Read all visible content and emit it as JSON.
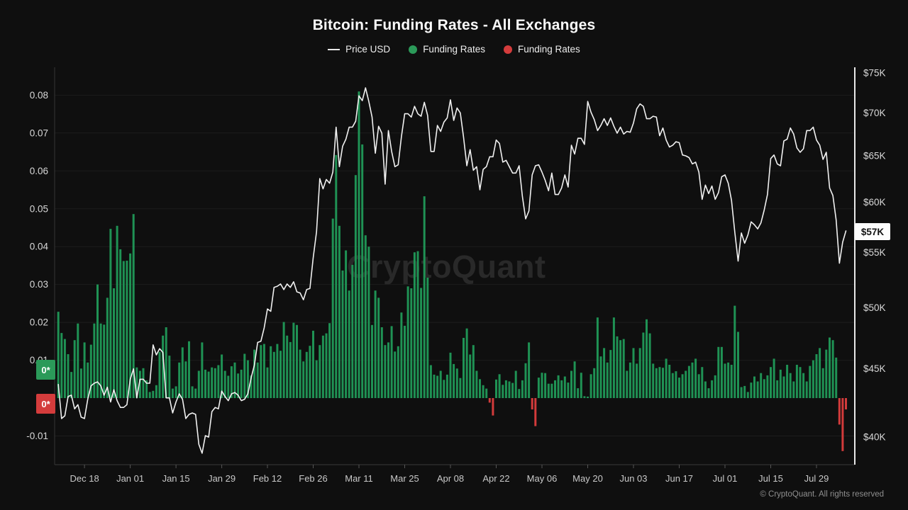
{
  "title": "Bitcoin: Funding Rates - All Exchanges",
  "legend": [
    {
      "label": "Price USD",
      "type": "line",
      "color": "#e8e8e8"
    },
    {
      "label": "Funding Rates",
      "type": "dot",
      "color": "#2b9a59"
    },
    {
      "label": "Funding Rates",
      "type": "dot",
      "color": "#d43c3c"
    }
  ],
  "watermark": "CryptoQuant",
  "copyright": "© CryptoQuant. All rights reserved",
  "left_axis": {
    "ticks": [
      0.08,
      0.07,
      0.06,
      0.05,
      0.04,
      0.03,
      0.02,
      0.01,
      -0.01
    ],
    "tick_labels": [
      "0.08",
      "0.07",
      "0.06",
      "0.05",
      "0.04",
      "0.03",
      "0.02",
      "0.01",
      "-0.01"
    ],
    "badges": [
      {
        "label": "0*",
        "series": "funding-positive",
        "color": "#2b9a59"
      },
      {
        "label": "0*",
        "series": "funding-negative",
        "color": "#d43c3c"
      }
    ]
  },
  "right_axis": {
    "ticks": [
      75000,
      70000,
      65000,
      60000,
      55000,
      50000,
      45000,
      40000
    ],
    "tick_labels": [
      "$75K",
      "$70K",
      "$65K",
      "$60K",
      "$55K",
      "$50K",
      "$45K",
      "$40K"
    ],
    "latest_price_badge": "$57K"
  },
  "chart_data": {
    "type": "mixed",
    "title": "Bitcoin: Funding Rates - All Exchanges",
    "start_date": "2023-12-10",
    "end_date": "2024-08-07",
    "x_ticks": [
      {
        "label": "Dec 18",
        "day": 8
      },
      {
        "label": "Jan 01",
        "day": 22
      },
      {
        "label": "Jan 15",
        "day": 36
      },
      {
        "label": "Jan 29",
        "day": 50
      },
      {
        "label": "Feb 12",
        "day": 64
      },
      {
        "label": "Feb 26",
        "day": 78
      },
      {
        "label": "Mar 11",
        "day": 92
      },
      {
        "label": "Mar 25",
        "day": 106
      },
      {
        "label": "Apr 08",
        "day": 120
      },
      {
        "label": "Apr 22",
        "day": 134
      },
      {
        "label": "May 06",
        "day": 148
      },
      {
        "label": "May 20",
        "day": 162
      },
      {
        "label": "Jun 03",
        "day": 176
      },
      {
        "label": "Jun 17",
        "day": 190
      },
      {
        "label": "Jul 01",
        "day": 204
      },
      {
        "label": "Jul 15",
        "day": 218
      },
      {
        "label": "Jul 29",
        "day": 232
      }
    ],
    "left_axis_range": [
      -0.015,
      0.085
    ],
    "right_axis_range_usd": [
      38000,
      76000
    ],
    "right_axis_scale": "log",
    "grid": "horizontal-only",
    "legend_position": "top-center",
    "series": [
      {
        "name": "Price USD",
        "type": "line",
        "color": "#f0f0f0",
        "unit": "USD thousands, daily",
        "values": [
          43.8,
          41.3,
          41.5,
          42.9,
          43.0,
          42.0,
          42.3,
          41.4,
          41.3,
          42.7,
          43.7,
          43.9,
          44.0,
          43.7,
          43.0,
          43.6,
          42.5,
          43.4,
          42.6,
          42.1,
          42.1,
          42.3,
          44.2,
          45.0,
          42.8,
          44.2,
          44.2,
          43.9,
          43.9,
          46.9,
          46.1,
          46.6,
          46.3,
          42.8,
          42.8,
          41.7,
          42.5,
          43.1,
          42.7,
          41.3,
          41.6,
          41.7,
          41.6,
          39.5,
          38.9,
          40.1,
          40.0,
          41.8,
          42.1,
          42.0,
          43.3,
          42.9,
          42.6,
          43.1,
          43.2,
          43.0,
          42.6,
          42.7,
          43.1,
          44.3,
          45.3,
          47.1,
          47.2,
          48.3,
          49.9,
          49.7,
          51.8,
          51.9,
          52.1,
          51.6,
          52.1,
          51.8,
          52.3,
          51.4,
          51.3,
          50.7,
          51.6,
          51.7,
          54.5,
          57.0,
          62.5,
          61.4,
          62.4,
          62.0,
          63.2,
          68.3,
          63.8,
          66.1,
          66.9,
          68.3,
          68.3,
          69.0,
          72.1,
          71.5,
          73.1,
          71.4,
          69.5,
          65.3,
          68.4,
          67.6,
          61.9,
          67.9,
          65.5,
          63.8,
          64.0,
          67.2,
          69.9,
          69.9,
          69.5,
          70.8,
          69.9,
          69.6,
          71.3,
          69.7,
          65.5,
          65.5,
          68.5,
          67.8,
          68.9,
          69.4,
          71.6,
          69.1,
          70.6,
          70.0,
          67.1,
          63.9,
          65.7,
          63.4,
          63.8,
          61.3,
          63.5,
          63.8,
          64.9,
          64.9,
          66.8,
          66.4,
          64.3,
          64.5,
          63.8,
          63.1,
          63.1,
          63.9,
          60.6,
          58.3,
          59.1,
          62.9,
          63.9,
          64.0,
          63.2,
          62.3,
          61.2,
          63.1,
          60.8,
          60.8,
          61.5,
          62.9,
          61.6,
          66.2,
          65.2,
          67.0,
          67.0,
          66.3,
          71.4,
          70.1,
          69.2,
          67.9,
          68.5,
          69.3,
          68.5,
          69.4,
          68.4,
          67.6,
          68.3,
          67.5,
          67.8,
          67.7,
          68.8,
          70.5,
          71.1,
          70.8,
          69.3,
          69.3,
          69.6,
          69.5,
          67.3,
          68.2,
          66.8,
          66.0,
          66.2,
          66.6,
          66.5,
          65.1,
          65.0,
          64.8,
          64.1,
          64.3,
          63.2,
          60.3,
          61.8,
          60.9,
          61.7,
          60.3,
          61.0,
          62.7,
          62.9,
          62.0,
          60.2,
          57.0,
          54.2,
          56.9,
          55.9,
          56.7,
          58.0,
          57.7,
          57.3,
          57.9,
          59.2,
          60.8,
          64.7,
          65.1,
          64.1,
          63.9,
          66.7,
          66.9,
          68.2,
          67.5,
          65.9,
          65.4,
          65.8,
          67.9,
          67.9,
          68.3,
          66.8,
          66.2,
          64.6,
          65.4,
          61.5,
          60.7,
          58.2,
          54.0,
          56.0,
          57.1
        ]
      },
      {
        "name": "Funding Rates",
        "type": "bar",
        "color_positive": "#1f9254",
        "color_negative": "#d33b3b",
        "unit": "funding rate, daily",
        "values": [
          0.0228,
          0.0172,
          0.0156,
          0.0116,
          0.0069,
          0.0153,
          0.0197,
          0.0078,
          0.0147,
          0.0094,
          0.0141,
          0.0197,
          0.03,
          0.0197,
          0.0194,
          0.0265,
          0.0447,
          0.029,
          0.0455,
          0.0393,
          0.0362,
          0.0363,
          0.0382,
          0.0486,
          0.0081,
          0.0072,
          0.0079,
          0.0047,
          0.0016,
          0.0019,
          0.0034,
          0.0122,
          0.0165,
          0.0187,
          0.0112,
          0.0025,
          0.0031,
          0.0094,
          0.0134,
          0.0097,
          0.015,
          0.0031,
          0.0025,
          0.0072,
          0.0147,
          0.0075,
          0.007,
          0.0081,
          0.0079,
          0.0087,
          0.0115,
          0.0072,
          0.0059,
          0.0084,
          0.0094,
          0.0065,
          0.0075,
          0.0117,
          0.01,
          0.006,
          0.0128,
          0.0094,
          0.014,
          0.0143,
          0.0081,
          0.0137,
          0.0122,
          0.0143,
          0.0125,
          0.0201,
          0.0165,
          0.0148,
          0.0199,
          0.0193,
          0.0128,
          0.0097,
          0.0122,
          0.0138,
          0.0178,
          0.01,
          0.014,
          0.0165,
          0.0171,
          0.0198,
          0.0474,
          0.0642,
          0.0455,
          0.0337,
          0.039,
          0.0284,
          0.0352,
          0.0589,
          0.081,
          0.067,
          0.043,
          0.04,
          0.0193,
          0.0284,
          0.0265,
          0.0187,
          0.014,
          0.0147,
          0.019,
          0.0123,
          0.0137,
          0.0226,
          0.0191,
          0.0295,
          0.029,
          0.0385,
          0.0388,
          0.0291,
          0.0533,
          0.0318,
          0.0087,
          0.0062,
          0.0059,
          0.0072,
          0.0048,
          0.0062,
          0.012,
          0.009,
          0.0078,
          0.0053,
          0.0159,
          0.0184,
          0.0115,
          0.014,
          0.0072,
          0.005,
          0.0034,
          0.0025,
          -0.0012,
          -0.0046,
          0.0049,
          0.0063,
          0.0035,
          0.0047,
          0.0044,
          0.004,
          0.0072,
          0.0024,
          0.0047,
          0.0092,
          0.0147,
          -0.003,
          -0.0074,
          0.0054,
          0.0067,
          0.0066,
          0.0038,
          0.0038,
          0.0047,
          0.006,
          0.0047,
          0.0057,
          0.0041,
          0.0072,
          0.0097,
          0.0026,
          0.0067,
          0.0005,
          0.0004,
          0.0063,
          0.0079,
          0.0213,
          0.011,
          0.0132,
          0.0094,
          0.0127,
          0.0213,
          0.0163,
          0.0153,
          0.0156,
          0.0072,
          0.0094,
          0.0132,
          0.0091,
          0.0132,
          0.0173,
          0.0208,
          0.0171,
          0.0091,
          0.0079,
          0.0082,
          0.008,
          0.0104,
          0.0088,
          0.0066,
          0.0071,
          0.0054,
          0.0063,
          0.0072,
          0.0085,
          0.0094,
          0.0104,
          0.0063,
          0.0082,
          0.0044,
          0.0026,
          0.0047,
          0.006,
          0.0135,
          0.0135,
          0.0091,
          0.0094,
          0.0088,
          0.0244,
          0.0175,
          0.0029,
          0.0032,
          0.0016,
          0.0041,
          0.0057,
          0.0044,
          0.0066,
          0.005,
          0.006,
          0.0082,
          0.0104,
          0.0047,
          0.0075,
          0.0057,
          0.0088,
          0.0066,
          0.0044,
          0.0088,
          0.0082,
          0.0066,
          0.0044,
          0.0085,
          0.01,
          0.0116,
          0.0132,
          0.0079,
          0.0128,
          0.016,
          0.0153,
          0.0107,
          -0.007,
          -0.014,
          -0.003
        ]
      }
    ]
  }
}
